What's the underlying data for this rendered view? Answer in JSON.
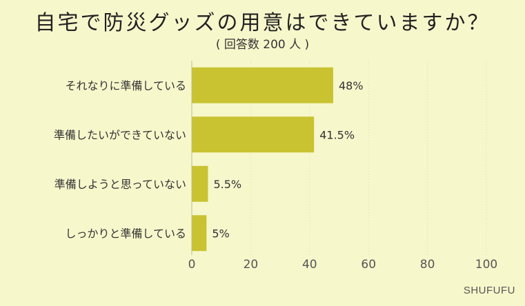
{
  "title": "自宅で防災グッズの用意はできていますか？",
  "subtitle": "( 回答数 200 人 )",
  "brand": "SHUFUFU",
  "chart_data": {
    "type": "bar",
    "orientation": "horizontal",
    "categories": [
      "それなりに準備している",
      "準備したいができていない",
      "準備しようと思っていない",
      "しっかりと準備している"
    ],
    "values": [
      48,
      41.5,
      5.5,
      5
    ],
    "value_labels": [
      "48%",
      "41.5%",
      "5.5%",
      "5%"
    ],
    "xlim": [
      0,
      100
    ],
    "xticks": [
      0,
      20,
      40,
      60,
      80,
      100
    ],
    "grid": true,
    "bar_color": "#c9c332",
    "background_color": "#f7f7cc"
  }
}
